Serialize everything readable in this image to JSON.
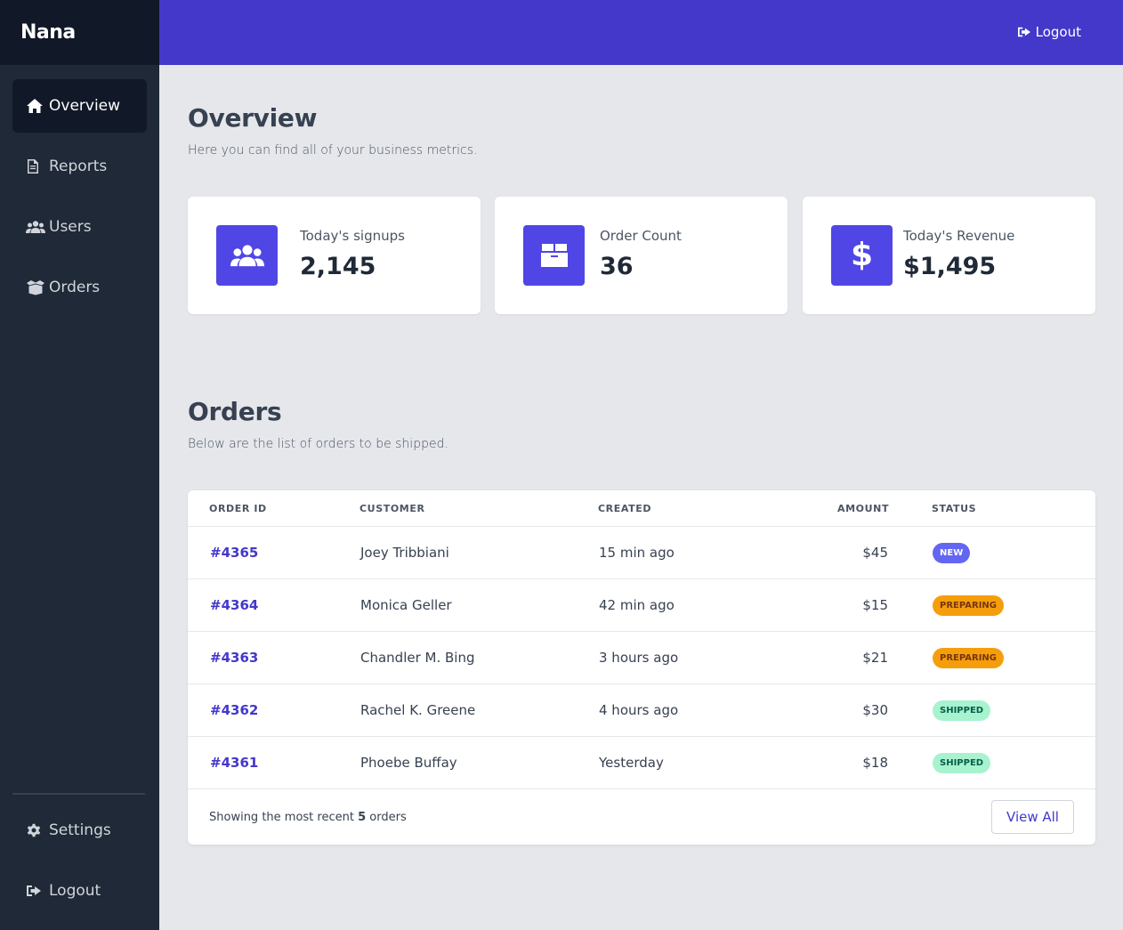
{
  "brand": {
    "name": "Nana"
  },
  "sidebar": {
    "items": [
      {
        "label": "Overview",
        "icon": "home-icon",
        "active": true
      },
      {
        "label": "Reports",
        "icon": "file-icon"
      },
      {
        "label": "Users",
        "icon": "users-icon"
      },
      {
        "label": "Orders",
        "icon": "box-open-icon"
      }
    ],
    "bottom": [
      {
        "label": "Settings",
        "icon": "gear-icon"
      },
      {
        "label": "Logout",
        "icon": "logout-icon"
      }
    ]
  },
  "topbar": {
    "logout_label": "Logout"
  },
  "overview": {
    "title": "Overview",
    "subtitle": "Here you can find all of your business metrics.",
    "cards": [
      {
        "label": "Today's signups",
        "value": "2,145",
        "icon": "users-icon"
      },
      {
        "label": "Order Count",
        "value": "36",
        "icon": "box-icon"
      },
      {
        "label": "Today's Revenue",
        "value": "$1,495",
        "icon": "dollar-icon"
      }
    ]
  },
  "orders": {
    "title": "Orders",
    "subtitle": "Below are the list of orders to be shipped.",
    "columns": [
      "ORDER ID",
      "CUSTOMER",
      "CREATED",
      "AMOUNT",
      "STATUS"
    ],
    "rows": [
      {
        "id": "#4365",
        "customer": "Joey Tribbiani",
        "created": "15 min ago",
        "amount": "$45",
        "status": "NEW"
      },
      {
        "id": "#4364",
        "customer": "Monica Geller",
        "created": "42 min ago",
        "amount": "$15",
        "status": "PREPARING"
      },
      {
        "id": "#4363",
        "customer": "Chandler M. Bing",
        "created": "3 hours ago",
        "amount": "$21",
        "status": "PREPARING"
      },
      {
        "id": "#4362",
        "customer": "Rachel K. Greene",
        "created": "4 hours ago",
        "amount": "$30",
        "status": "SHIPPED"
      },
      {
        "id": "#4361",
        "customer": "Phoebe Buffay",
        "created": "Yesterday",
        "amount": "$18",
        "status": "SHIPPED"
      }
    ],
    "footer_prefix": "Showing the most recent",
    "footer_count": "5",
    "footer_suffix": "orders",
    "view_all_label": "View All"
  },
  "colors": {
    "sidebar": "#1f2937",
    "brand_bg": "#111827",
    "topbar": "#4338ca",
    "accent": "#4f46e5",
    "badge_new": "#6366f1",
    "badge_preparing": "#f59e0b",
    "badge_shipped": "#a7f3d0"
  }
}
